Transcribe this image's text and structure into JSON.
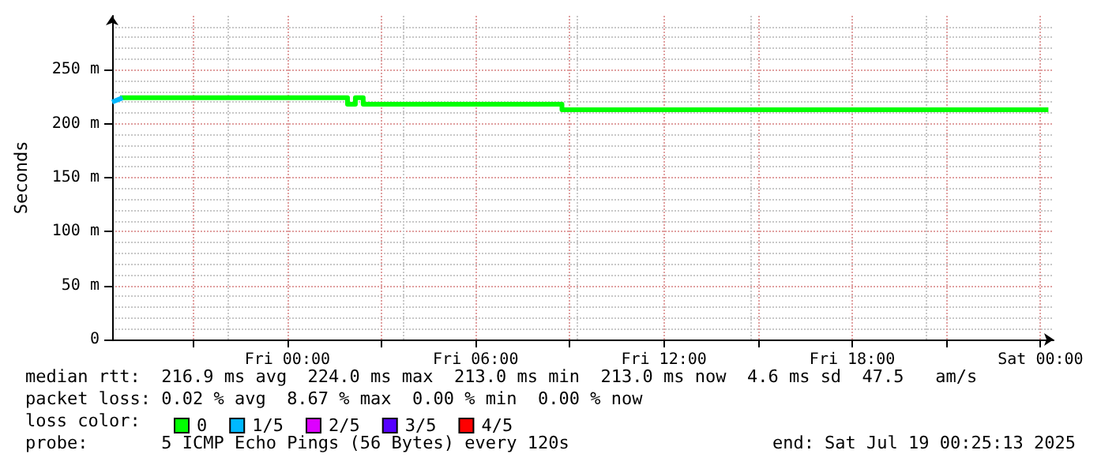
{
  "chart_data": {
    "type": "step",
    "ylabel": "Seconds",
    "legend_title": "loss color:",
    "legend": "bottom",
    "grid": true,
    "line_style": "solid",
    "marker": "none",
    "xlim": [
      "2025-07-17T18:25",
      "2025-07-19T00:25"
    ],
    "xticks": [
      {
        "value": "2025-07-17T21:00",
        "label": null
      },
      {
        "value": "2025-07-18T00:00",
        "label": "Fri 00:00"
      },
      {
        "value": "2025-07-18T03:00",
        "label": null
      },
      {
        "value": "2025-07-18T06:00",
        "label": "Fri 06:00"
      },
      {
        "value": "2025-07-18T09:00",
        "label": null
      },
      {
        "value": "2025-07-18T12:00",
        "label": "Fri 12:00"
      },
      {
        "value": "2025-07-18T15:00",
        "label": null
      },
      {
        "value": "2025-07-18T18:00",
        "label": "Fri 18:00"
      },
      {
        "value": "2025-07-18T21:00",
        "label": null
      },
      {
        "value": "2025-07-19T00:00",
        "label": "Sat 00:00"
      }
    ],
    "ylim": [
      0,
      300
    ],
    "yticks": [
      0,
      {
        "value": 50,
        "label": "50 m"
      },
      {
        "value": 100,
        "label": "100 m"
      },
      {
        "value": 150,
        "label": "150 m"
      },
      {
        "value": 200,
        "label": "200 m"
      },
      {
        "value": 250,
        "label": "250 m"
      }
    ],
    "series": [
      {
        "name": "0",
        "color": "#00ff00",
        "x": [
          "2025-07-17T18:40",
          "2025-07-18T01:55",
          "2025-07-18T02:10",
          "2025-07-18T02:25",
          "2025-07-18T08:45",
          "2025-07-19T00:15"
        ],
        "values": [
          224,
          218,
          224,
          218,
          213,
          213
        ]
      },
      {
        "name": "1/5",
        "color": "#00b8ff",
        "type": "line",
        "x": [
          "2025-07-17T18:25",
          "2025-07-17T18:45"
        ],
        "values": [
          220,
          224
        ]
      },
      {
        "name": "2/5",
        "color": "#dd00ff"
      },
      {
        "name": "3/5",
        "color": "#5500ff"
      },
      {
        "name": "4/5",
        "color": "#ff0000"
      }
    ],
    "annotations": [
      "median rtt:  216.9 ms avg  224.0 ms max  213.0 ms min  213.0 ms now  4.6 ms sd  47.5   am/s",
      "packet loss: 0.02 % avg  8.67 % max  0.00 % min  0.00 % now",
      "probe:       5 ICMP Echo Pings (56 Bytes) every 120s",
      "end: Sat Jul 19 00:25:13 2025"
    ]
  }
}
